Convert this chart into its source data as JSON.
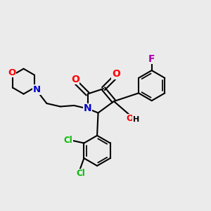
{
  "background_color": "#ebebeb",
  "atom_colors": {
    "O": "#ff0000",
    "N": "#0000cc",
    "Cl": "#00bb00",
    "F": "#aa00aa",
    "H": "#000000",
    "C": "#000000"
  },
  "lw": 1.5,
  "dbo": 0.008,
  "fs": 9
}
